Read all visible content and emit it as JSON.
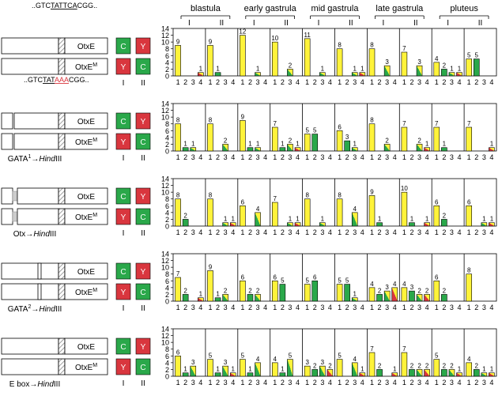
{
  "stages": [
    "blastula",
    "early gastrula",
    "mid gastrula",
    "late gastrula",
    "pluteus"
  ],
  "roman": [
    "I",
    "II"
  ],
  "construct_labels": [
    "OtxE",
    "OtxE"
  ],
  "construct_sup": "M",
  "seq_top": {
    "pre": "..GTC",
    "u": "TATTCA",
    "post": "CGG.."
  },
  "seq_bottom": {
    "pre": "..GTC",
    "u1": "TAT",
    "mut": "AAA",
    "post": "CGG.."
  },
  "box_letters": {
    "C": "C",
    "Y": "Y"
  },
  "colors": {
    "C": "#2aa84a",
    "Y": "#d9363e",
    "yellow": "#fff33a",
    "hatch": "#999999"
  },
  "rows": [
    {
      "label": "",
      "label_parts": []
    },
    {
      "label": "GATA1→HindIII",
      "label_parts": [
        {
          "t": "GATA"
        },
        {
          "t": "1",
          "sup": true
        },
        {
          "t": "→"
        },
        {
          "t": "Hind",
          "i": true
        },
        {
          "t": "III"
        }
      ]
    },
    {
      "label": "Otx→HindIII",
      "label_parts": [
        {
          "t": "Otx→"
        },
        {
          "t": "Hind",
          "i": true
        },
        {
          "t": "III"
        }
      ]
    },
    {
      "label": "GATA2→HindIII",
      "label_parts": [
        {
          "t": "GATA"
        },
        {
          "t": "2",
          "sup": true
        },
        {
          "t": "→"
        },
        {
          "t": "Hind",
          "i": true
        },
        {
          "t": "III"
        }
      ]
    },
    {
      "label": "E box→HindIII",
      "label_parts": [
        {
          "t": "E box→"
        },
        {
          "t": "Hind",
          "i": true
        },
        {
          "t": "III"
        }
      ]
    }
  ],
  "chart_data": {
    "type": "bar",
    "y_ticks": [
      0,
      2,
      4,
      6,
      8,
      10,
      12,
      14
    ],
    "ylim": [
      0,
      14
    ],
    "x_categories": [
      "1",
      "2",
      "3",
      "4"
    ],
    "category_colors": {
      "1": "yellow",
      "2": "green",
      "3": "green+yellow",
      "4": "red+yellow"
    },
    "panels": [
      [
        [
          9,
          0,
          0,
          1
        ],
        [
          9,
          1,
          0,
          0
        ],
        [
          12,
          0,
          1,
          0
        ],
        [
          10,
          0,
          2,
          0
        ],
        [
          11,
          0,
          1,
          0
        ],
        [
          8,
          0,
          1,
          1
        ],
        [
          8,
          0,
          3,
          0
        ],
        [
          7,
          0,
          3,
          0
        ],
        [
          4,
          2,
          1,
          1
        ],
        [
          5,
          5,
          0,
          0
        ]
      ],
      [
        [
          8,
          1,
          1,
          0
        ],
        [
          8,
          0,
          2,
          0
        ],
        [
          9,
          1,
          1,
          0
        ],
        [
          7,
          1,
          2,
          1
        ],
        [
          5,
          5,
          0,
          0
        ],
        [
          6,
          3,
          1,
          0
        ],
        [
          8,
          0,
          2,
          0
        ],
        [
          7,
          0,
          2,
          1
        ],
        [
          7,
          1,
          0,
          0
        ],
        [
          7,
          0,
          0,
          1
        ]
      ],
      [
        [
          8,
          2,
          0,
          0
        ],
        [
          8,
          0,
          1,
          1
        ],
        [
          6,
          0,
          4,
          0
        ],
        [
          7,
          0,
          1,
          1
        ],
        [
          8,
          0,
          1,
          0
        ],
        [
          8,
          0,
          4,
          0
        ],
        [
          9,
          1,
          0,
          0
        ],
        [
          10,
          1,
          0,
          1
        ],
        [
          6,
          2,
          0,
          0
        ],
        [
          6,
          0,
          1,
          1
        ]
      ],
      [
        [
          7,
          2,
          0,
          1
        ],
        [
          9,
          1,
          2,
          0
        ],
        [
          6,
          2,
          2,
          0
        ],
        [
          6,
          5,
          0,
          0
        ],
        [
          5,
          6,
          0,
          0
        ],
        [
          5,
          5,
          1,
          0
        ],
        [
          4,
          2,
          3,
          4
        ],
        [
          4,
          3,
          2,
          2
        ],
        [
          6,
          2,
          0,
          0
        ],
        [
          8,
          0,
          0,
          0
        ]
      ],
      [
        [
          6,
          1,
          3,
          0
        ],
        [
          5,
          1,
          3,
          1
        ],
        [
          5,
          1,
          4,
          0
        ],
        [
          4,
          1,
          5,
          0
        ],
        [
          3,
          2,
          3,
          2
        ],
        [
          5,
          0,
          4,
          1
        ],
        [
          7,
          2,
          0,
          1
        ],
        [
          7,
          2,
          2,
          2
        ],
        [
          5,
          2,
          2,
          1
        ],
        [
          4,
          2,
          1,
          1
        ]
      ]
    ]
  }
}
